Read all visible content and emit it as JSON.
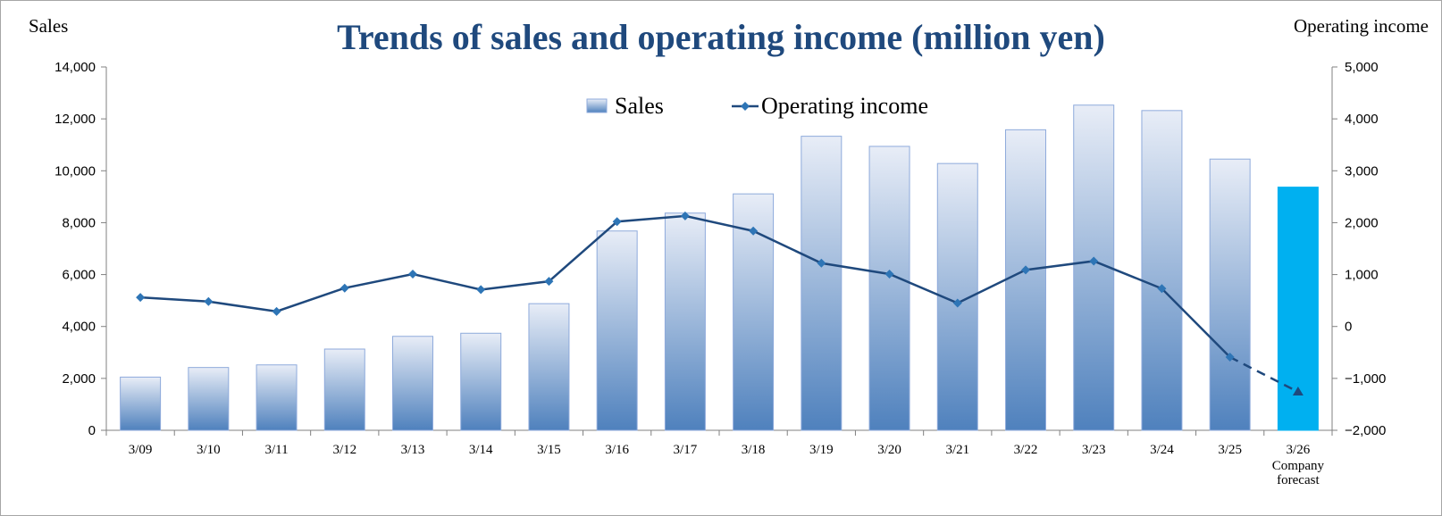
{
  "chart_data": {
    "type": "bar",
    "title": "Trends of sales and operating income (million yen)",
    "ylabel_left": "Sales",
    "ylabel_right": "Operating income",
    "categories": [
      "3/09",
      "3/10",
      "3/11",
      "3/12",
      "3/13",
      "3/14",
      "3/15",
      "3/16",
      "3/17",
      "3/18",
      "3/19",
      "3/20",
      "3/21",
      "3/22",
      "3/23",
      "3/24",
      "3/25",
      "3/26"
    ],
    "category_sublabels": {
      "17": [
        "Company",
        "forecast"
      ]
    },
    "ylim_left": [
      0,
      14000
    ],
    "yticks_left": [
      0,
      2000,
      4000,
      6000,
      8000,
      10000,
      12000,
      14000
    ],
    "ytick_labels_left": [
      "0",
      "2,000",
      "4,000",
      "6,000",
      "8,000",
      "10,000",
      "12,000",
      "14,000"
    ],
    "ylim_right": [
      -2000,
      5000
    ],
    "yticks_right": [
      -2000,
      -1000,
      0,
      1000,
      2000,
      3000,
      4000,
      5000
    ],
    "ytick_labels_right": [
      "−2,000",
      "−1,000",
      "0",
      "1,000",
      "2,000",
      "3,000",
      "4,000",
      "5,000"
    ],
    "negative_tick_color": "#e00000",
    "grid": false,
    "legend_position": "top-center",
    "legend": [
      "Sales",
      "Operating income"
    ],
    "series": [
      {
        "name": "Sales",
        "type": "bar",
        "axis": "left",
        "values": [
          2050,
          2420,
          2520,
          3130,
          3620,
          3740,
          4880,
          7680,
          8370,
          9110,
          11330,
          10940,
          10280,
          11580,
          12530,
          12320,
          10450,
          9370
        ],
        "forecast_index": 17,
        "color_top": "#e8edf7",
        "color_bottom": "#4f81bd",
        "forecast_color": "#00b0f0"
      },
      {
        "name": "Operating income",
        "type": "line",
        "axis": "right",
        "values": [
          560,
          480,
          290,
          740,
          1010,
          710,
          870,
          2020,
          2130,
          1840,
          1220,
          1010,
          450,
          1090,
          1260,
          730,
          -590,
          -1260
        ],
        "forecast_index": 17,
        "color": "#1f497d",
        "marker_color": "#2e75b6"
      }
    ]
  }
}
